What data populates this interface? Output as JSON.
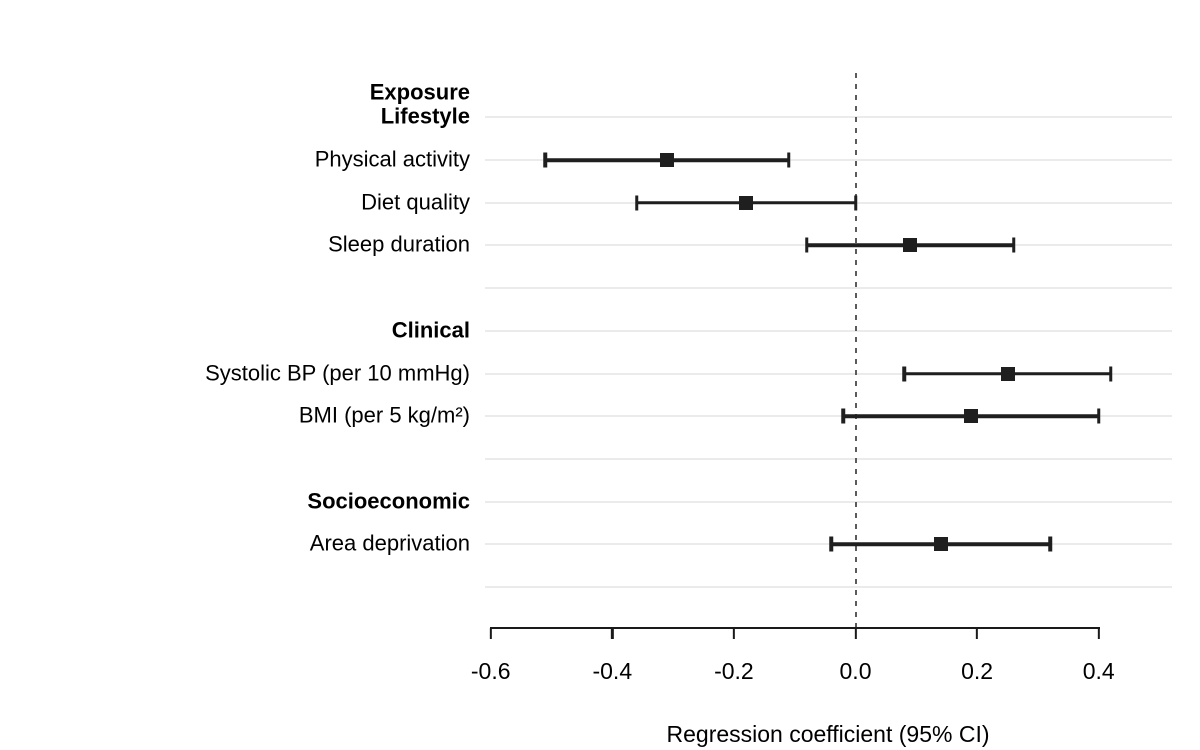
{
  "chart_data": {
    "type": "forest",
    "title": "",
    "xlabel": "Regression coefficient (95% CI)",
    "column_header": "Exposure",
    "zero_line_x": 0.0,
    "xlim": [
      -0.61,
      0.52
    ],
    "grid": "horizontal-only",
    "legend": "none",
    "x_ticks": [
      {
        "value": -0.6,
        "label": "-0.6"
      },
      {
        "value": -0.4,
        "label": "-0.4"
      },
      {
        "value": -0.2,
        "label": "-0.2"
      },
      {
        "value": 0.0,
        "label": "0.0"
      },
      {
        "value": 0.2,
        "label": "0.2"
      },
      {
        "value": 0.4,
        "label": "0.4"
      }
    ],
    "rows": [
      {
        "type": "group",
        "label": "Lifestyle"
      },
      {
        "type": "item",
        "label": "Physical activity",
        "estimate": -0.31,
        "ci_low": -0.51,
        "ci_high": -0.11
      },
      {
        "type": "item",
        "label": "Diet quality",
        "estimate": -0.18,
        "ci_low": -0.36,
        "ci_high": 0.0
      },
      {
        "type": "item",
        "label": "Sleep duration",
        "estimate": 0.09,
        "ci_low": -0.08,
        "ci_high": 0.26
      },
      {
        "type": "spacer"
      },
      {
        "type": "group",
        "label": "Clinical"
      },
      {
        "type": "item",
        "label": "Systolic BP (per 10 mmHg)",
        "estimate": 0.25,
        "ci_low": 0.08,
        "ci_high": 0.42
      },
      {
        "type": "item",
        "label": "BMI (per 5 kg/m²)",
        "estimate": 0.19,
        "ci_low": -0.02,
        "ci_high": 0.4
      },
      {
        "type": "spacer"
      },
      {
        "type": "group",
        "label": "Socioeconomic"
      },
      {
        "type": "item",
        "label": "Area deprivation",
        "estimate": 0.14,
        "ci_low": -0.04,
        "ci_high": 0.32
      },
      {
        "type": "spacer"
      }
    ],
    "colors": {
      "marker": "#1f1f1f",
      "ci_line": "#1f1f1f",
      "gridline": "#ebebeb",
      "zero_line": "#5b5b5b",
      "axis": "#1a1a1a",
      "text": "#000000",
      "background": "#ffffff"
    }
  }
}
